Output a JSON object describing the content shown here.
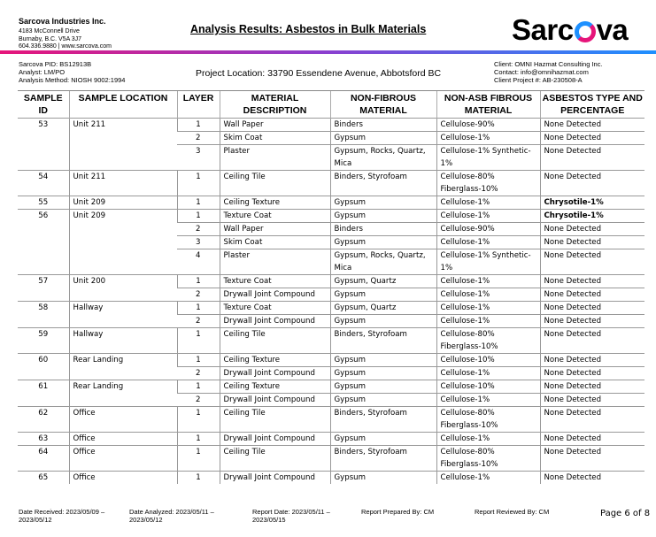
{
  "company": {
    "name": "Sarcova Industries Inc.",
    "address": [
      "4183 McConnell Drive",
      "Burnaby, B.C. V5A 3J7",
      "604.336.9880 | www.sarcova.com"
    ],
    "logo_text": "Sarcova"
  },
  "title": "Analysis Results: Asbestos in Bulk Materials",
  "colors": {
    "gradient_start": "#e6157a",
    "gradient_end": "#1e90ff"
  },
  "meta_left": [
    "Sarcova PID: BS12913B",
    "Analyst: LM/PO",
    "Analysis Method: NIOSH 9002:1994"
  ],
  "project_location": "Project Location: 33790 Essendene Avenue, Abbotsford BC",
  "meta_right": [
    "Client: OMNI Hazmat Consulting Inc.",
    "Contact: info@omnihazmat.com",
    "Client Project #: AB-230508-A"
  ],
  "columns": [
    "SAMPLE ID",
    "SAMPLE LOCATION",
    "LAYER",
    "MATERIAL DESCRIPTION",
    "NON-FIBROUS MATERIAL",
    "NON-ASB FIBROUS MATERIAL",
    "ASBESTOS TYPE AND PERCENTAGE"
  ],
  "samples": [
    {
      "id": "53",
      "location": "Unit 211",
      "layers": [
        [
          "1",
          "Wall Paper",
          "Binders",
          "Cellulose-90%",
          "None Detected"
        ],
        [
          "2",
          "Skim Coat",
          "Gypsum",
          "Cellulose-1%",
          "None Detected"
        ],
        [
          "3",
          "Plaster",
          "Gypsum, Rocks, Quartz, Mica",
          "Cellulose-1% Synthetic-1%",
          "None Detected"
        ]
      ]
    },
    {
      "id": "54",
      "location": "Unit 211",
      "layers": [
        [
          "1",
          "Ceiling Tile",
          "Binders, Styrofoam",
          "Cellulose-80% Fiberglass-10%",
          "None Detected"
        ]
      ]
    },
    {
      "id": "55",
      "location": "Unit 209",
      "layers": [
        [
          "1",
          "Ceiling Texture",
          "Gypsum",
          "Cellulose-1%",
          "Chrysotile-1%"
        ]
      ]
    },
    {
      "id": "56",
      "location": "Unit 209",
      "layers": [
        [
          "1",
          "Texture Coat",
          "Gypsum",
          "Cellulose-1%",
          "Chrysotile-1%"
        ],
        [
          "2",
          "Wall Paper",
          "Binders",
          "Cellulose-90%",
          "None Detected"
        ],
        [
          "3",
          "Skim Coat",
          "Gypsum",
          "Cellulose-1%",
          "None Detected"
        ],
        [
          "4",
          "Plaster",
          "Gypsum, Rocks, Quartz, Mica",
          "Cellulose-1% Synthetic-1%",
          "None Detected"
        ]
      ]
    },
    {
      "id": "57",
      "location": "Unit 200",
      "layers": [
        [
          "1",
          "Texture Coat",
          "Gypsum, Quartz",
          "Cellulose-1%",
          "None Detected"
        ],
        [
          "2",
          "Drywall Joint Compound",
          "Gypsum",
          "Cellulose-1%",
          "None Detected"
        ]
      ]
    },
    {
      "id": "58",
      "location": "Hallway",
      "layers": [
        [
          "1",
          "Texture Coat",
          "Gypsum, Quartz",
          "Cellulose-1%",
          "None Detected"
        ],
        [
          "2",
          "Drywall Joint Compound",
          "Gypsum",
          "Cellulose-1%",
          "None Detected"
        ]
      ]
    },
    {
      "id": "59",
      "location": "Hallway",
      "layers": [
        [
          "1",
          "Ceiling Tile",
          "Binders, Styrofoam",
          "Cellulose-80% Fiberglass-10%",
          "None Detected"
        ]
      ]
    },
    {
      "id": "60",
      "location": "Rear Landing",
      "layers": [
        [
          "1",
          "Ceiling Texture",
          "Gypsum",
          "Cellulose-10%",
          "None Detected"
        ],
        [
          "2",
          "Drywall Joint Compound",
          "Gypsum",
          "Cellulose-1%",
          "None Detected"
        ]
      ]
    },
    {
      "id": "61",
      "location": "Rear Landing",
      "layers": [
        [
          "1",
          "Ceiling Texture",
          "Gypsum",
          "Cellulose-10%",
          "None Detected"
        ],
        [
          "2",
          "Drywall Joint Compound",
          "Gypsum",
          "Cellulose-1%",
          "None Detected"
        ]
      ]
    },
    {
      "id": "62",
      "location": "Office",
      "layers": [
        [
          "1",
          "Ceiling Tile",
          "Binders, Styrofoam",
          "Cellulose-80% Fiberglass-10%",
          "None Detected"
        ]
      ]
    },
    {
      "id": "63",
      "location": "Office",
      "layers": [
        [
          "1",
          "Drywall Joint Compound",
          "Gypsum",
          "Cellulose-1%",
          "None Detected"
        ]
      ]
    },
    {
      "id": "64",
      "location": "Office",
      "layers": [
        [
          "1",
          "Ceiling Tile",
          "Binders, Styrofoam",
          "Cellulose-80% Fiberglass-10%",
          "None Detected"
        ]
      ]
    },
    {
      "id": "65",
      "location": "Office",
      "layers": [
        [
          "1",
          "Drywall Joint Compound",
          "Gypsum",
          "Cellulose-1%",
          "None Detected"
        ]
      ]
    }
  ],
  "footer": {
    "received": "Date Received: 2023/05/09 – 2023/05/12",
    "analyzed": "Date Analyzed: 2023/05/11 – 2023/05/12",
    "report_date": "Report Date: 2023/05/11 – 2023/05/15",
    "prepared": "Report Prepared By: CM",
    "reviewed": "Report Reviewed By: CM",
    "page": "Page 6 of 8"
  }
}
